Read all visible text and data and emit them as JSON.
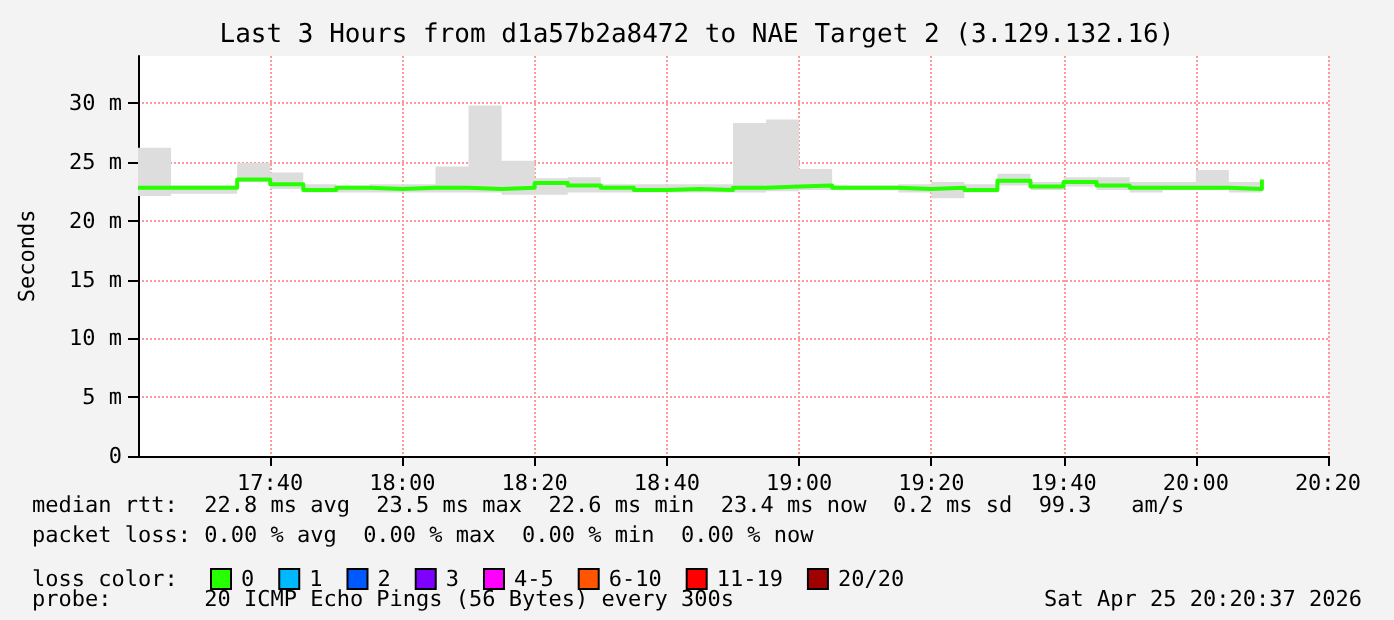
{
  "chart_data": {
    "type": "step",
    "title": "Last 3 Hours from d1a57b2a8472 to NAE Target 2 (3.129.132.16)",
    "ylabel": "Seconds",
    "legend_title": "loss color:",
    "x": [
      "2026-04-25T17:20",
      "2026-04-25T17:25",
      "2026-04-25T17:30",
      "2026-04-25T17:35",
      "2026-04-25T17:40",
      "2026-04-25T17:45",
      "2026-04-25T17:50",
      "2026-04-25T17:55",
      "2026-04-25T18:00",
      "2026-04-25T18:05",
      "2026-04-25T18:10",
      "2026-04-25T18:15",
      "2026-04-25T18:20",
      "2026-04-25T18:25",
      "2026-04-25T18:30",
      "2026-04-25T18:35",
      "2026-04-25T18:40",
      "2026-04-25T18:45",
      "2026-04-25T18:50",
      "2026-04-25T18:55",
      "2026-04-25T19:00",
      "2026-04-25T19:05",
      "2026-04-25T19:10",
      "2026-04-25T19:15",
      "2026-04-25T19:20",
      "2026-04-25T19:25",
      "2026-04-25T19:30",
      "2026-04-25T19:35",
      "2026-04-25T19:40",
      "2026-04-25T19:45",
      "2026-04-25T19:50",
      "2026-04-25T19:55",
      "2026-04-25T20:00",
      "2026-04-25T20:05",
      "2026-04-25T20:10"
    ],
    "series": [
      {
        "name": "0",
        "color": "#26ff00",
        "values": [
          22.8,
          22.8,
          22.8,
          23.5,
          23.1,
          22.6,
          22.8,
          22.7,
          22.8,
          22.8,
          22.7,
          22.8,
          23.2,
          23.0,
          22.8,
          22.6,
          22.7,
          22.6,
          22.8,
          22.9,
          23.0,
          22.8,
          22.8,
          22.7,
          22.8,
          22.6,
          23.4,
          22.9,
          23.3,
          23.0,
          22.8,
          22.8,
          22.8,
          22.7,
          23.5
        ],
        "lower": [
          22.1,
          22.3,
          22.3,
          23.3,
          22.7,
          22.4,
          22.4,
          22.4,
          22.4,
          22.4,
          22.4,
          22.2,
          22.2,
          22.4,
          22.4,
          22.4,
          22.4,
          22.4,
          22.4,
          22.5,
          22.6,
          22.6,
          22.6,
          22.4,
          21.9,
          22.4,
          23.0,
          22.6,
          22.9,
          22.6,
          22.4,
          22.6,
          22.6,
          22.4,
          23.3
        ],
        "upper": [
          26.2,
          23.0,
          23.0,
          24.9,
          24.1,
          23.1,
          23.0,
          23.1,
          23.1,
          24.6,
          29.8,
          25.1,
          23.6,
          23.7,
          23.1,
          23.1,
          23.1,
          23.1,
          28.3,
          28.6,
          24.4,
          23.0,
          23.0,
          23.1,
          23.3,
          23.1,
          24.0,
          23.3,
          23.7,
          23.7,
          23.3,
          23.3,
          24.3,
          23.3,
          23.6
        ]
      },
      {
        "name": "1",
        "color": "#00b8ff",
        "values": [
          null,
          null,
          null,
          null,
          null,
          null,
          null,
          null,
          null,
          null,
          null,
          null,
          null,
          null,
          null,
          null,
          null,
          null,
          null,
          null,
          null,
          null,
          null,
          null,
          null,
          null,
          null,
          null,
          null,
          null,
          null,
          null,
          null,
          null,
          null
        ]
      },
      {
        "name": "2",
        "color": "#0059ff",
        "values": [
          null,
          null,
          null,
          null,
          null,
          null,
          null,
          null,
          null,
          null,
          null,
          null,
          null,
          null,
          null,
          null,
          null,
          null,
          null,
          null,
          null,
          null,
          null,
          null,
          null,
          null,
          null,
          null,
          null,
          null,
          null,
          null,
          null,
          null,
          null
        ]
      },
      {
        "name": "3",
        "color": "#7e00ff",
        "values": [
          null,
          null,
          null,
          null,
          null,
          null,
          null,
          null,
          null,
          null,
          null,
          null,
          null,
          null,
          null,
          null,
          null,
          null,
          null,
          null,
          null,
          null,
          null,
          null,
          null,
          null,
          null,
          null,
          null,
          null,
          null,
          null,
          null,
          null,
          null
        ]
      },
      {
        "name": "4-5",
        "color": "#ff00ff",
        "values": [
          null,
          null,
          null,
          null,
          null,
          null,
          null,
          null,
          null,
          null,
          null,
          null,
          null,
          null,
          null,
          null,
          null,
          null,
          null,
          null,
          null,
          null,
          null,
          null,
          null,
          null,
          null,
          null,
          null,
          null,
          null,
          null,
          null,
          null,
          null
        ]
      },
      {
        "name": "6-10",
        "color": "#ff5500",
        "values": [
          null,
          null,
          null,
          null,
          null,
          null,
          null,
          null,
          null,
          null,
          null,
          null,
          null,
          null,
          null,
          null,
          null,
          null,
          null,
          null,
          null,
          null,
          null,
          null,
          null,
          null,
          null,
          null,
          null,
          null,
          null,
          null,
          null,
          null,
          null
        ]
      },
      {
        "name": "11-19",
        "color": "#ff0000",
        "values": [
          null,
          null,
          null,
          null,
          null,
          null,
          null,
          null,
          null,
          null,
          null,
          null,
          null,
          null,
          null,
          null,
          null,
          null,
          null,
          null,
          null,
          null,
          null,
          null,
          null,
          null,
          null,
          null,
          null,
          null,
          null,
          null,
          null,
          null,
          null
        ]
      },
      {
        "name": "20/20",
        "color": "#a10000",
        "values": [
          null,
          null,
          null,
          null,
          null,
          null,
          null,
          null,
          null,
          null,
          null,
          null,
          null,
          null,
          null,
          null,
          null,
          null,
          null,
          null,
          null,
          null,
          null,
          null,
          null,
          null,
          null,
          null,
          null,
          null,
          null,
          null,
          null,
          null,
          null
        ]
      }
    ],
    "xlim": [
      "2026-04-25T17:20",
      "2026-04-25T20:20"
    ],
    "xticks": [
      {
        "value": "2026-04-25T17:40",
        "label": "17:40"
      },
      {
        "value": "2026-04-25T18:00",
        "label": "18:00"
      },
      {
        "value": "2026-04-25T18:20",
        "label": "18:20"
      },
      {
        "value": "2026-04-25T18:40",
        "label": "18:40"
      },
      {
        "value": "2026-04-25T19:00",
        "label": "19:00"
      },
      {
        "value": "2026-04-25T19:20",
        "label": "19:20"
      },
      {
        "value": "2026-04-25T19:40",
        "label": "19:40"
      },
      {
        "value": "2026-04-25T20:00",
        "label": "20:00"
      },
      {
        "value": "2026-04-25T20:20",
        "label": "20:20"
      }
    ],
    "ylim": [
      0,
      34
    ],
    "yticks": [
      0,
      {
        "value": 5,
        "label": "5 m"
      },
      {
        "value": 10,
        "label": "10 m"
      },
      {
        "value": 15,
        "label": "15 m"
      },
      {
        "value": 20,
        "label": "20 m"
      },
      {
        "value": 25,
        "label": "25 m"
      },
      {
        "value": 30,
        "label": "30 m"
      }
    ],
    "grid": true,
    "legend": "bottom",
    "marker": "none",
    "line_style": "solid",
    "annotations": [
      "median rtt:  22.8 ms avg  23.5 ms max  22.6 ms min  23.4 ms now  0.2 ms sd  99.3   am/s",
      "packet loss: 0.00 % avg  0.00 % max  0.00 % min  0.00 % now",
      "probe:       20 ICMP Echo Pings (56 Bytes) every 300s",
      "Sat Apr 25 20:20:37 2026"
    ]
  }
}
